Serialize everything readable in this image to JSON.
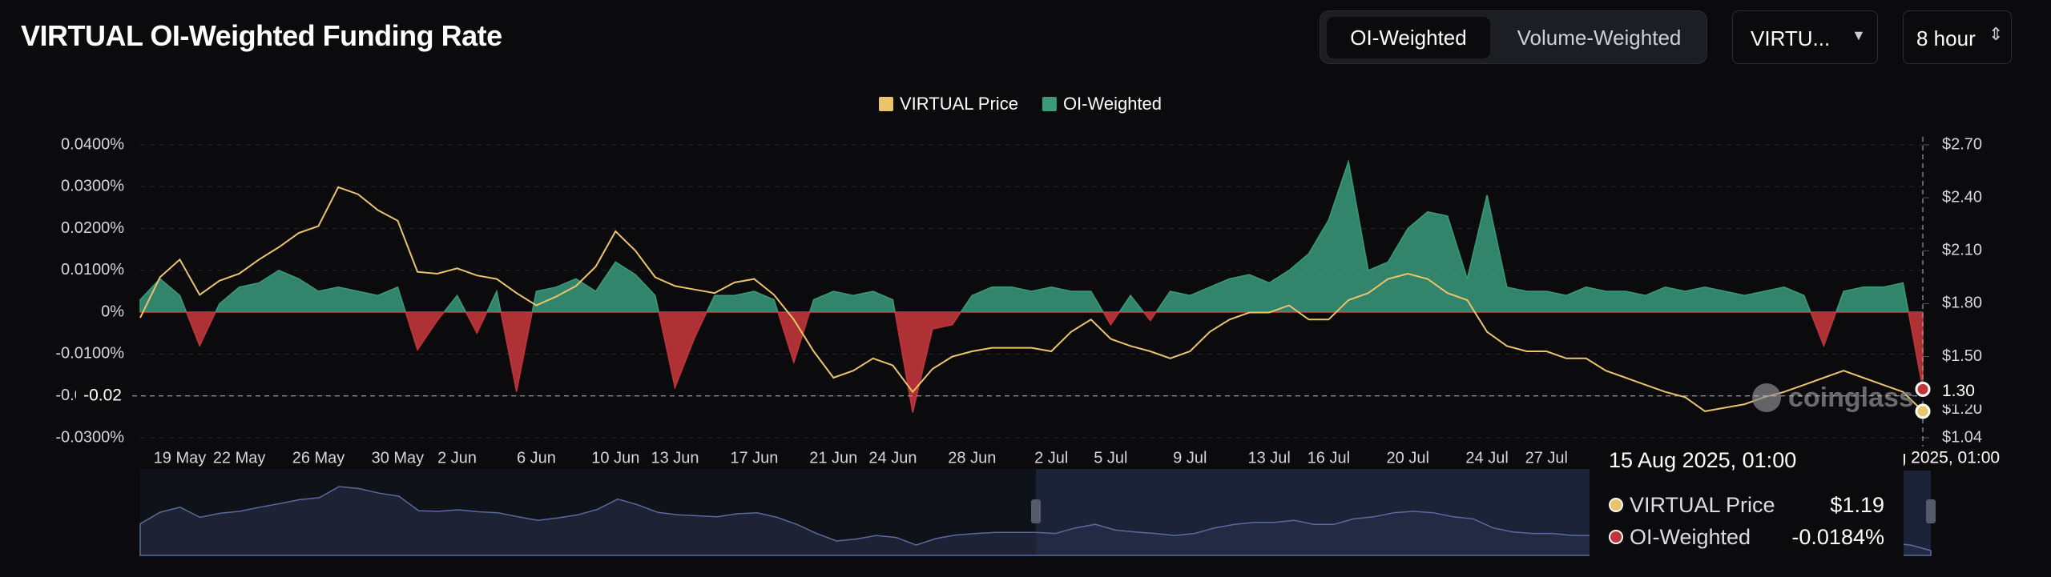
{
  "header": {
    "title": "VIRTUAL OI-Weighted Funding Rate",
    "toggle": [
      "OI-Weighted",
      "Volume-Weighted"
    ],
    "symbol": "VIRTU...",
    "interval": "8 hour"
  },
  "chart_data": {
    "type": "combo",
    "x": [
      "17 May",
      "18 May",
      "19 May",
      "20 May",
      "21 May",
      "22 May",
      "23 May",
      "24 May",
      "25 May",
      "26 May",
      "27 May",
      "28 May",
      "29 May",
      "30 May",
      "31 May",
      "1 Jun",
      "2 Jun",
      "3 Jun",
      "4 Jun",
      "5 Jun",
      "6 Jun",
      "7 Jun",
      "8 Jun",
      "9 Jun",
      "10 Jun",
      "11 Jun",
      "12 Jun",
      "13 Jun",
      "14 Jun",
      "15 Jun",
      "16 Jun",
      "17 Jun",
      "18 Jun",
      "19 Jun",
      "20 Jun",
      "21 Jun",
      "22 Jun",
      "23 Jun",
      "24 Jun",
      "25 Jun",
      "26 Jun",
      "27 Jun",
      "28 Jun",
      "29 Jun",
      "30 Jun",
      "1 Jul",
      "2 Jul",
      "3 Jul",
      "4 Jul",
      "5 Jul",
      "6 Jul",
      "7 Jul",
      "8 Jul",
      "9 Jul",
      "10 Jul",
      "11 Jul",
      "12 Jul",
      "13 Jul",
      "14 Jul",
      "15 Jul",
      "16 Jul",
      "17 Jul",
      "18 Jul",
      "19 Jul",
      "20 Jul",
      "21 Jul",
      "22 Jul",
      "23 Jul",
      "24 Jul",
      "25 Jul",
      "26 Jul",
      "27 Jul",
      "28 Jul",
      "29 Jul",
      "30 Jul",
      "31 Jul",
      "1 Aug",
      "2 Aug",
      "3 Aug",
      "4 Aug",
      "5 Aug",
      "6 Aug",
      "7 Aug",
      "8 Aug",
      "9 Aug",
      "10 Aug",
      "11 Aug",
      "12 Aug",
      "13 Aug",
      "14 Aug",
      "15 Aug"
    ],
    "xticks": [
      "19 May",
      "22 May",
      "26 May",
      "30 May",
      "2 Jun",
      "6 Jun",
      "10 Jun",
      "13 Jun",
      "17 Jun",
      "21 Jun",
      "24 Jun",
      "28 Jun",
      "2 Jul",
      "5 Jul",
      "9 Jul",
      "13 Jul",
      "16 Jul",
      "20 Jul",
      "24 Jul",
      "27 Jul"
    ],
    "series": [
      {
        "name": "VIRTUAL Price",
        "color": "#e9c46a",
        "axis": "y2",
        "type": "line",
        "values": [
          1.72,
          1.95,
          2.05,
          1.85,
          1.93,
          1.97,
          2.05,
          2.12,
          2.2,
          2.24,
          2.46,
          2.42,
          2.33,
          2.27,
          1.98,
          1.97,
          2.0,
          1.96,
          1.94,
          1.86,
          1.79,
          1.84,
          1.9,
          2.01,
          2.21,
          2.1,
          1.95,
          1.9,
          1.88,
          1.86,
          1.92,
          1.94,
          1.85,
          1.71,
          1.53,
          1.38,
          1.42,
          1.49,
          1.45,
          1.3,
          1.43,
          1.5,
          1.53,
          1.55,
          1.55,
          1.55,
          1.53,
          1.64,
          1.71,
          1.6,
          1.56,
          1.53,
          1.49,
          1.53,
          1.64,
          1.71,
          1.75,
          1.75,
          1.79,
          1.71,
          1.71,
          1.82,
          1.86,
          1.94,
          1.97,
          1.94,
          1.86,
          1.82,
          1.64,
          1.56,
          1.53,
          1.53,
          1.49,
          1.49,
          1.42,
          1.38,
          1.34,
          1.3,
          1.27,
          1.19,
          1.21,
          1.23,
          1.27,
          1.3,
          1.34,
          1.38,
          1.42,
          1.38,
          1.34,
          1.3,
          1.19
        ]
      },
      {
        "name": "OI-Weighted",
        "color": "#3a9a7a",
        "negative_color": "#c0353b",
        "type": "area",
        "values": [
          0.003,
          0.008,
          0.004,
          -0.008,
          0.002,
          0.006,
          0.007,
          0.01,
          0.008,
          0.005,
          0.006,
          0.005,
          0.004,
          0.006,
          -0.009,
          -0.002,
          0.004,
          -0.005,
          0.005,
          -0.019,
          0.005,
          0.006,
          0.008,
          0.005,
          0.012,
          0.009,
          0.004,
          -0.018,
          -0.006,
          0.004,
          0.004,
          0.005,
          0.003,
          -0.012,
          0.003,
          0.005,
          0.004,
          0.005,
          0.003,
          -0.024,
          -0.004,
          -0.003,
          0.004,
          0.006,
          0.006,
          0.005,
          0.006,
          0.005,
          0.005,
          -0.003,
          0.004,
          -0.002,
          0.005,
          0.004,
          0.006,
          0.008,
          0.009,
          0.007,
          0.01,
          0.014,
          0.022,
          0.036,
          0.01,
          0.012,
          0.02,
          0.024,
          0.023,
          0.008,
          0.028,
          0.006,
          0.005,
          0.005,
          0.004,
          0.006,
          0.005,
          0.005,
          0.004,
          0.006,
          0.005,
          0.006,
          0.005,
          0.004,
          0.005,
          0.006,
          0.004,
          -0.008,
          0.005,
          0.006,
          0.006,
          0.007,
          -0.0184
        ]
      }
    ],
    "ylim": [
      -0.03,
      0.04
    ],
    "yticks": [
      {
        "value": 0.04,
        "label": "0.0400%"
      },
      {
        "value": 0.03,
        "label": "0.0300%"
      },
      {
        "value": 0.02,
        "label": "0.0200%"
      },
      {
        "value": 0.01,
        "label": "0.0100%"
      },
      {
        "value": 0,
        "label": "0%"
      },
      {
        "value": -0.01,
        "label": "-0.0100%"
      },
      {
        "value": -0.02,
        "label": "-0.0200%"
      },
      {
        "value": -0.03,
        "label": "-0.0300%"
      }
    ],
    "y2lim": [
      1.04,
      2.7
    ],
    "y2ticks": [
      {
        "value": 2.7,
        "label": "$2.70"
      },
      {
        "value": 2.4,
        "label": "$2.40"
      },
      {
        "value": 2.1,
        "label": "$2.10"
      },
      {
        "value": 1.8,
        "label": "$1.80"
      },
      {
        "value": 1.5,
        "label": "$1.50"
      },
      {
        "value": 1.2,
        "label": "$1.20"
      },
      {
        "value": 1.04,
        "label": "$1.04"
      }
    ],
    "grid": true,
    "legend": "top",
    "crosshair": {
      "x": "15 Aug 2025, 01:00",
      "y": -0.02,
      "y2": {
        "value": 1.3,
        "label": "1.30"
      }
    },
    "tooltip": {
      "date": "15 Aug 2025, 01:00",
      "items": [
        {
          "name": "VIRTUAL Price",
          "value": "$1.19"
        },
        {
          "name": "OI-Weighted",
          "value": "-0.0184%"
        }
      ]
    },
    "watermark": "coinglass"
  }
}
